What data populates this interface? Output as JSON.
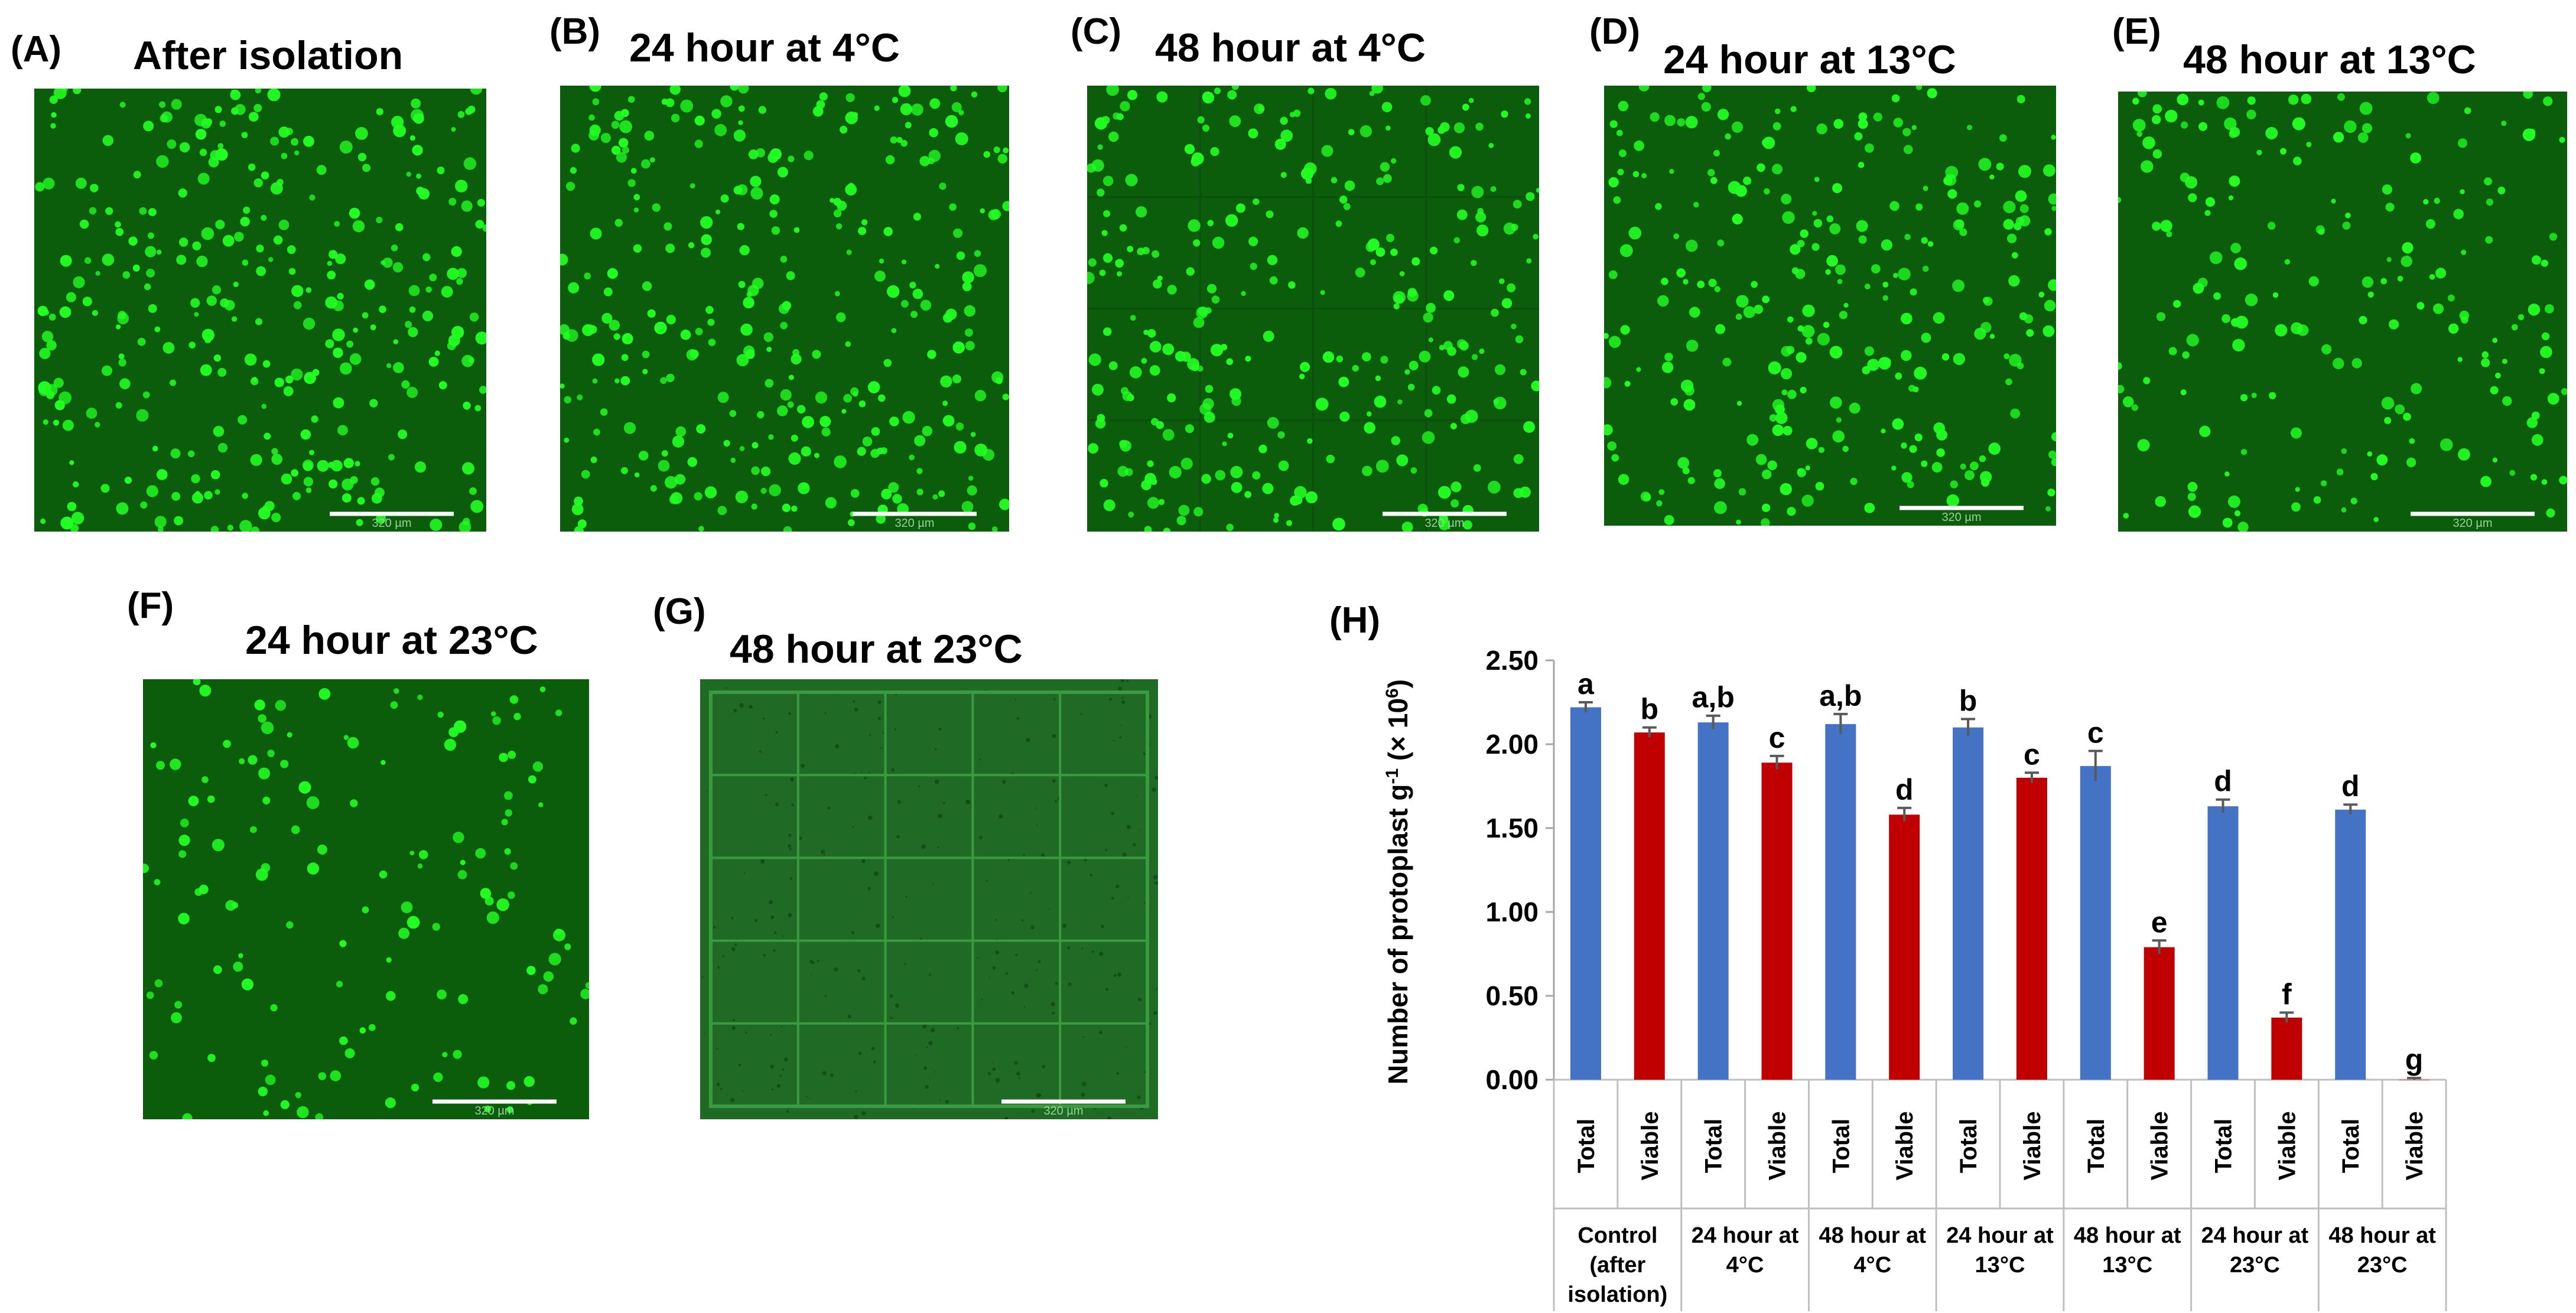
{
  "panels": [
    {
      "letter": "(A)",
      "title": "After isolation",
      "scale_text": "320 µm"
    },
    {
      "letter": "(B)",
      "title": "24 hour at 4°C",
      "scale_text": "320 µm"
    },
    {
      "letter": "(C)",
      "title": "48 hour at 4°C",
      "scale_text": "320 µm"
    },
    {
      "letter": "(D)",
      "title": "24 hour at 13°C",
      "scale_text": "320 µm"
    },
    {
      "letter": "(E)",
      "title": "48 hour at 13°C",
      "scale_text": "320 µm"
    },
    {
      "letter": "(F)",
      "title": "24 hour at 23°C",
      "scale_text": "320 µm"
    },
    {
      "letter": "(G)",
      "title": "48 hour at 23°C",
      "scale_text": "320 µm"
    }
  ],
  "chart_panel_letter": "(H)",
  "colors": {
    "total": "#4472C4",
    "viable": "#C00000",
    "error_bar": "#595959",
    "microscope_bg": "#0b5d0b",
    "protoplast": "#22ff22"
  },
  "chart_data": {
    "type": "bar",
    "title": "",
    "ylabel": "Number of protoplast g⁻¹ (× 10⁶)",
    "ylabel_parts": {
      "main": "Number of protoplast g",
      "sup1": "-1",
      "mid": " (× 10",
      "sup2": "6",
      "end": ")"
    },
    "ylim": [
      0,
      2.5
    ],
    "yticks": [
      "0.00",
      "0.50",
      "1.00",
      "1.50",
      "2.00",
      "2.50"
    ],
    "ytick_values": [
      0,
      0.5,
      1.0,
      1.5,
      2.0,
      2.5
    ],
    "grid": false,
    "groups": [
      {
        "label_lines": [
          "Control",
          "(after",
          "isolation)"
        ]
      },
      {
        "label_lines": [
          "24 hour at",
          "4°C"
        ]
      },
      {
        "label_lines": [
          "48 hour at",
          "4°C"
        ]
      },
      {
        "label_lines": [
          "24 hour at",
          "13°C"
        ]
      },
      {
        "label_lines": [
          "48 hour at",
          "13°C"
        ]
      },
      {
        "label_lines": [
          "24 hour at",
          "23°C"
        ]
      },
      {
        "label_lines": [
          "48 hour at",
          "23°C"
        ]
      }
    ],
    "bars": [
      {
        "group": 0,
        "category": "Total",
        "value": 2.22,
        "error": 0.03,
        "letter": "a",
        "series": "total"
      },
      {
        "group": 0,
        "category": "Viable",
        "value": 2.07,
        "error": 0.03,
        "letter": "b",
        "series": "viable"
      },
      {
        "group": 1,
        "category": "Total",
        "value": 2.13,
        "error": 0.04,
        "letter": "a,b",
        "series": "total"
      },
      {
        "group": 1,
        "category": "Viable",
        "value": 1.89,
        "error": 0.04,
        "letter": "c",
        "series": "viable"
      },
      {
        "group": 2,
        "category": "Total",
        "value": 2.12,
        "error": 0.06,
        "letter": "a,b",
        "series": "total"
      },
      {
        "group": 2,
        "category": "Viable",
        "value": 1.58,
        "error": 0.04,
        "letter": "d",
        "series": "viable"
      },
      {
        "group": 3,
        "category": "Total",
        "value": 2.1,
        "error": 0.05,
        "letter": "b",
        "series": "total"
      },
      {
        "group": 3,
        "category": "Viable",
        "value": 1.8,
        "error": 0.03,
        "letter": "c",
        "series": "viable"
      },
      {
        "group": 4,
        "category": "Total",
        "value": 1.87,
        "error": 0.09,
        "letter": "c",
        "series": "total"
      },
      {
        "group": 4,
        "category": "Viable",
        "value": 0.79,
        "error": 0.04,
        "letter": "e",
        "series": "viable"
      },
      {
        "group": 5,
        "category": "Total",
        "value": 1.63,
        "error": 0.04,
        "letter": "d",
        "series": "total"
      },
      {
        "group": 5,
        "category": "Viable",
        "value": 0.37,
        "error": 0.03,
        "letter": "f",
        "series": "viable"
      },
      {
        "group": 6,
        "category": "Total",
        "value": 1.61,
        "error": 0.03,
        "letter": "d",
        "series": "total"
      },
      {
        "group": 6,
        "category": "Viable",
        "value": 0.0,
        "error": 0.01,
        "letter": "g",
        "series": "viable"
      }
    ]
  }
}
